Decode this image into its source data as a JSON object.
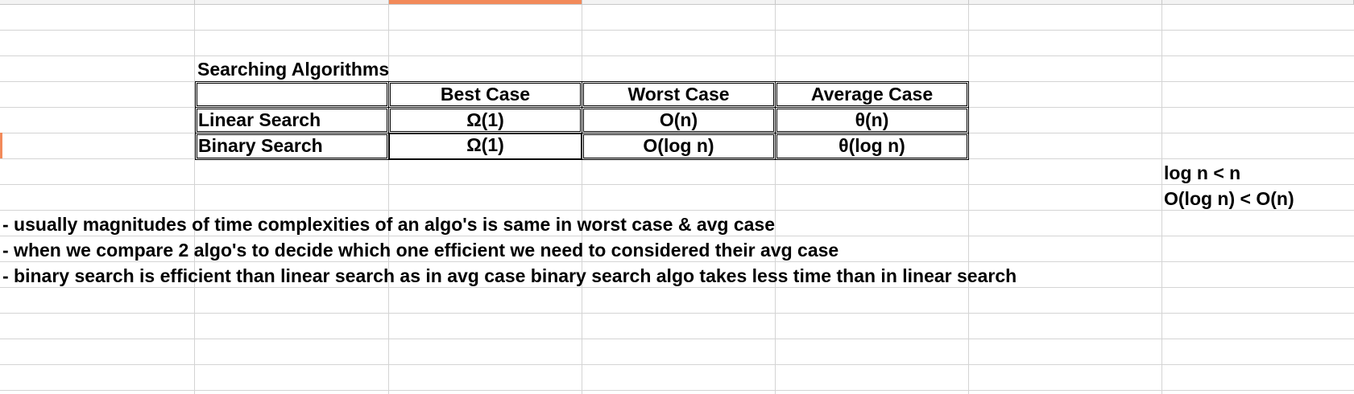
{
  "sheet": {
    "accent_color": "#f28a5a",
    "selected_column_index": 2
  },
  "table": {
    "title": "Searching Algorithms",
    "headers": [
      "",
      "Best Case",
      "Worst Case",
      "Average Case"
    ],
    "rows": [
      [
        "Linear Search",
        "Ω(1)",
        "O(n)",
        "θ(n)"
      ],
      [
        "Binary Search",
        "Ω(1)",
        "O(log n)",
        "θ(log n)"
      ]
    ]
  },
  "side_notes": {
    "line1": "log n < n",
    "line2": "O(log n) < O(n)"
  },
  "notes": [
    "- usually magnitudes of time complexities of an algo's is same in worst case & avg case",
    "- when we compare 2 algo's to decide which one efficient we need to considered their avg case",
    "- binary search is efficient than linear search as in avg case binary search algo takes less time than in linear search"
  ]
}
